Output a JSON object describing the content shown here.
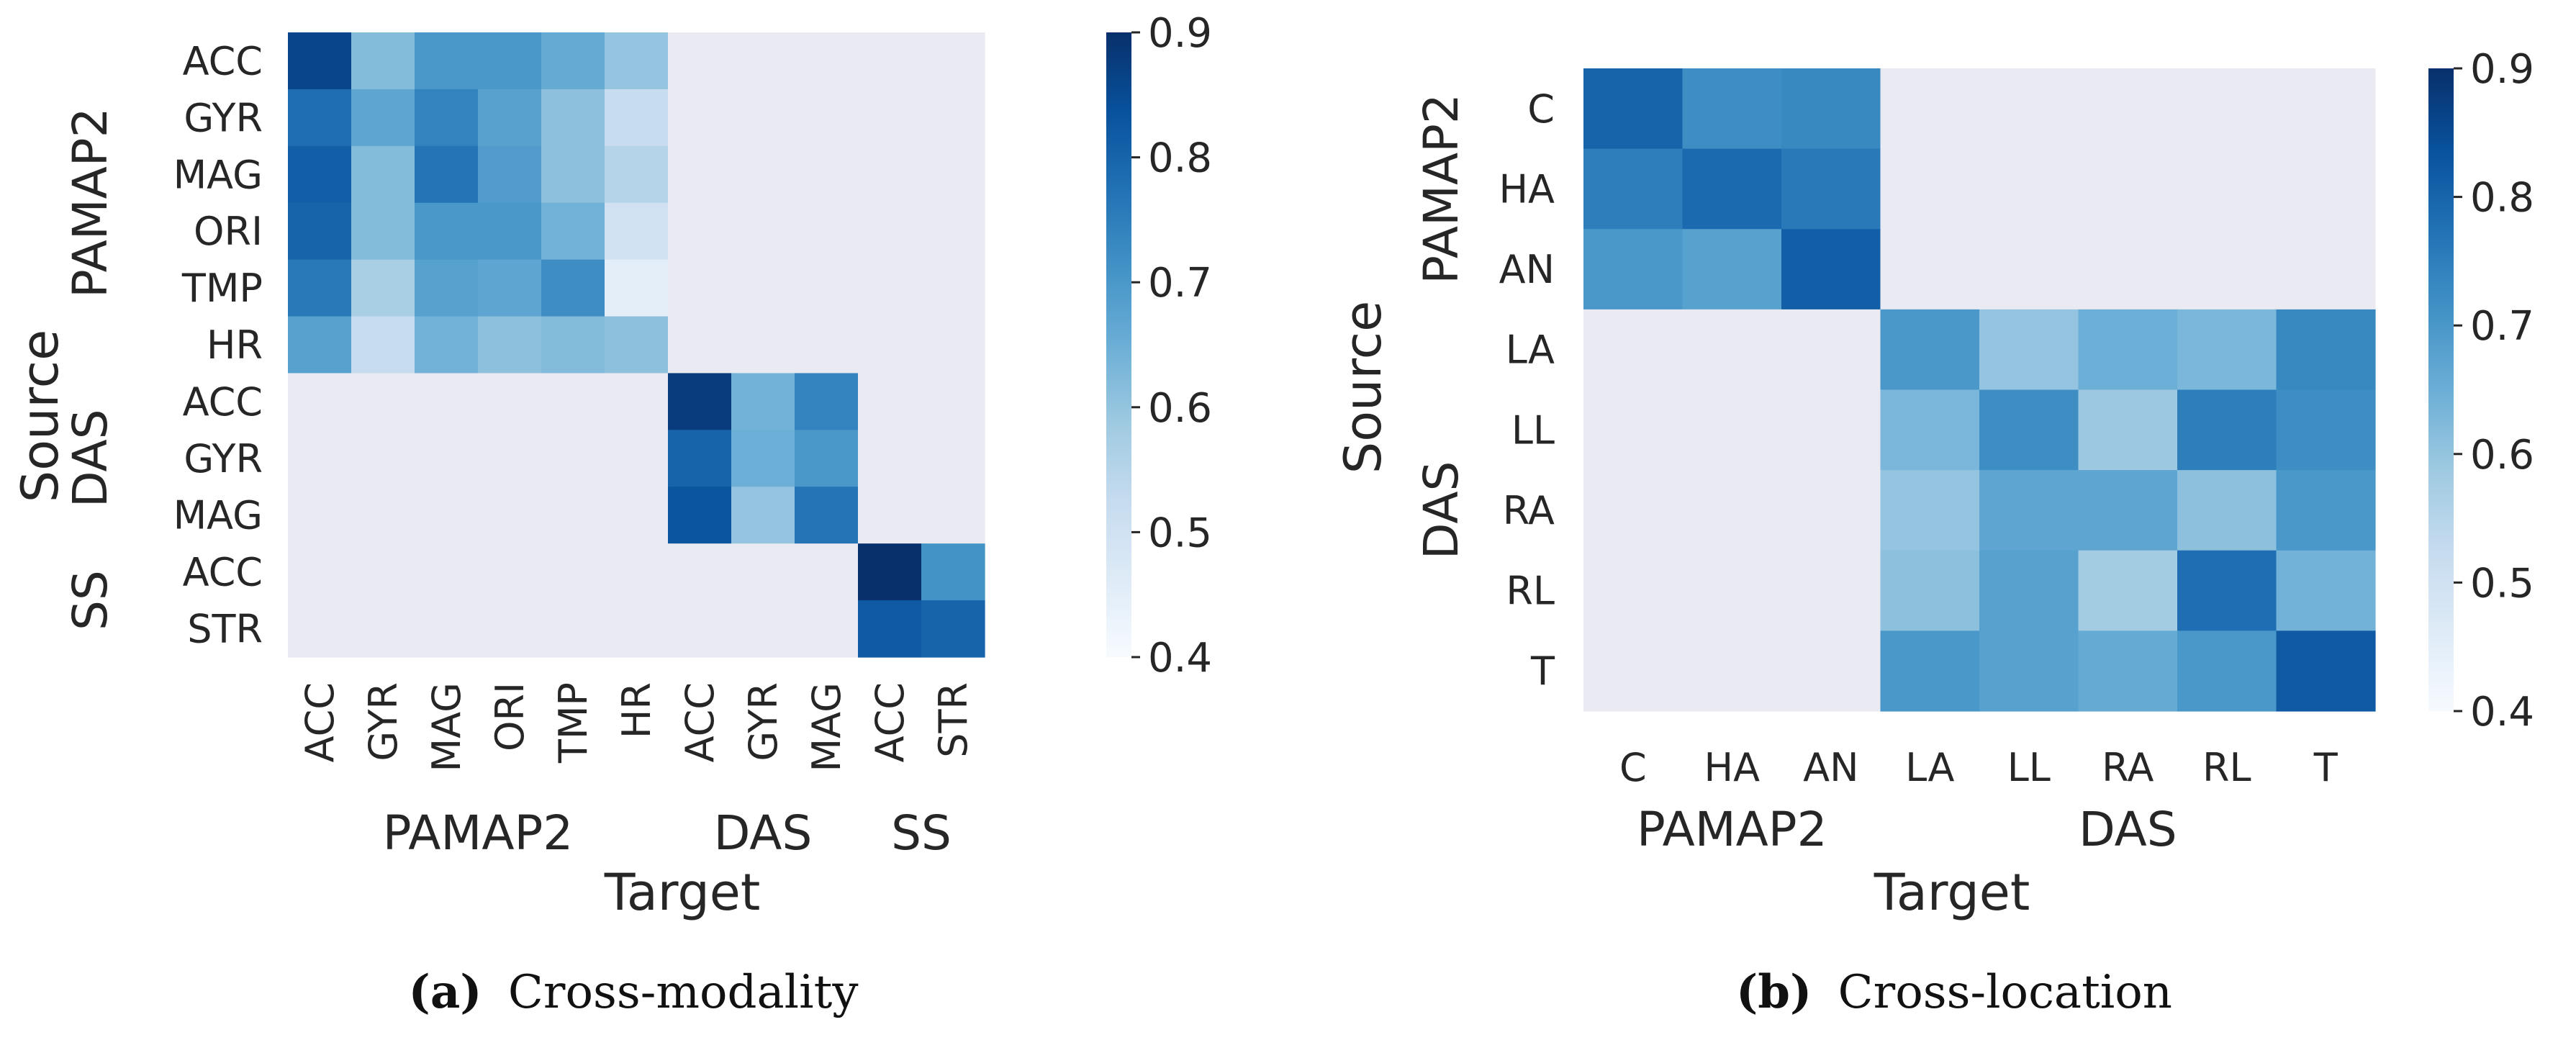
{
  "chart_data": [
    {
      "type": "heatmap",
      "caption_letter": "(a)",
      "caption_text": "Cross-modality",
      "xlabel": "Target",
      "ylabel": "Source",
      "x_ticks": [
        "ACC",
        "GYR",
        "MAG",
        "ORI",
        "TMP",
        "HR",
        "ACC",
        "GYR",
        "MAG",
        "ACC",
        "STR"
      ],
      "y_ticks": [
        "ACC",
        "GYR",
        "MAG",
        "ORI",
        "TMP",
        "HR",
        "ACC",
        "GYR",
        "MAG",
        "ACC",
        "STR"
      ],
      "x_groups": [
        {
          "label": "PAMAP2",
          "start": 0,
          "end": 5
        },
        {
          "label": "DAS",
          "start": 6,
          "end": 8
        },
        {
          "label": "SS",
          "start": 9,
          "end": 10
        }
      ],
      "y_groups": [
        {
          "label": "PAMAP2",
          "start": 0,
          "end": 5
        },
        {
          "label": "DAS",
          "start": 6,
          "end": 8
        },
        {
          "label": "SS",
          "start": 9,
          "end": 10
        }
      ],
      "values": [
        [
          0.86,
          0.62,
          0.7,
          0.7,
          0.66,
          0.6,
          null,
          null,
          null,
          null,
          null
        ],
        [
          0.78,
          0.67,
          0.74,
          0.68,
          0.61,
          0.52,
          null,
          null,
          null,
          null,
          null
        ],
        [
          0.81,
          0.62,
          0.77,
          0.69,
          0.61,
          0.55,
          null,
          null,
          null,
          null,
          null
        ],
        [
          0.8,
          0.62,
          0.7,
          0.7,
          0.64,
          0.5,
          null,
          null,
          null,
          null,
          null
        ],
        [
          0.76,
          0.57,
          0.68,
          0.67,
          0.72,
          0.45,
          null,
          null,
          null,
          null,
          null
        ],
        [
          0.68,
          0.52,
          0.64,
          0.61,
          0.62,
          0.61,
          null,
          null,
          null,
          null,
          null
        ],
        [
          null,
          null,
          null,
          null,
          null,
          null,
          0.88,
          0.64,
          0.74,
          null,
          null
        ],
        [
          null,
          null,
          null,
          null,
          null,
          null,
          0.8,
          0.65,
          0.7,
          null,
          null
        ],
        [
          null,
          null,
          null,
          null,
          null,
          null,
          0.83,
          0.6,
          0.77,
          null,
          null
        ],
        [
          null,
          null,
          null,
          null,
          null,
          null,
          null,
          null,
          null,
          0.92,
          0.71
        ],
        [
          null,
          null,
          null,
          null,
          null,
          null,
          null,
          null,
          null,
          0.82,
          0.8
        ]
      ],
      "vmin": 0.4,
      "vmax": 0.9,
      "colorbar_ticks": [
        "0.4",
        "0.5",
        "0.6",
        "0.7",
        "0.8",
        "0.9"
      ]
    },
    {
      "type": "heatmap",
      "caption_letter": "(b)",
      "caption_text": "Cross-location",
      "xlabel": "Target",
      "ylabel": "Source",
      "x_ticks": [
        "C",
        "HA",
        "AN",
        "LA",
        "LL",
        "RA",
        "RL",
        "T"
      ],
      "y_ticks": [
        "C",
        "HA",
        "AN",
        "LA",
        "LL",
        "RA",
        "RL",
        "T"
      ],
      "x_groups": [
        {
          "label": "PAMAP2",
          "start": 0,
          "end": 2
        },
        {
          "label": "DAS",
          "start": 3,
          "end": 7
        }
      ],
      "y_groups": [
        {
          "label": "PAMAP2",
          "start": 0,
          "end": 2
        },
        {
          "label": "DAS",
          "start": 3,
          "end": 7
        }
      ],
      "values": [
        [
          0.8,
          0.72,
          0.73,
          null,
          null,
          null,
          null,
          null
        ],
        [
          0.75,
          0.79,
          0.76,
          null,
          null,
          null,
          null,
          null
        ],
        [
          0.7,
          0.68,
          0.81,
          null,
          null,
          null,
          null,
          null
        ],
        [
          null,
          null,
          null,
          0.7,
          0.6,
          0.65,
          0.63,
          0.73
        ],
        [
          null,
          null,
          null,
          0.63,
          0.72,
          0.59,
          0.75,
          0.72
        ],
        [
          null,
          null,
          null,
          0.6,
          0.67,
          0.67,
          0.61,
          0.7
        ],
        [
          null,
          null,
          null,
          0.61,
          0.68,
          0.58,
          0.78,
          0.64
        ],
        [
          null,
          null,
          null,
          0.7,
          0.68,
          0.66,
          0.7,
          0.82
        ]
      ],
      "vmin": 0.4,
      "vmax": 0.9,
      "colorbar_ticks": [
        "0.4",
        "0.5",
        "0.6",
        "0.7",
        "0.8",
        "0.9"
      ]
    }
  ],
  "style": {
    "empty_cell_color": "#eaeaf2",
    "colormap": [
      "#f7fbff",
      "#deebf7",
      "#c6dbef",
      "#9ecae1",
      "#6baed6",
      "#4292c6",
      "#2171b5",
      "#08519c",
      "#08306b"
    ]
  }
}
